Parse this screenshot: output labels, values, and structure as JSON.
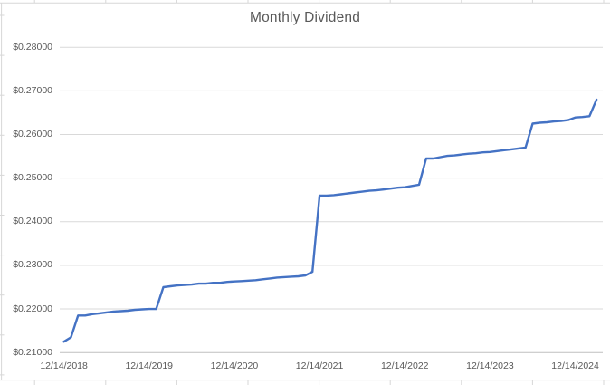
{
  "chart": {
    "colors": {
      "line": "#4472c4",
      "gridline": "#d9d9d9",
      "axis_line": "#bfbfbf",
      "text": "#595959",
      "sheet_grid": "#d7d7d7",
      "background": "#ffffff"
    }
  },
  "chart_data": {
    "type": "line",
    "title": "Monthly Dividend",
    "xlabel": "",
    "ylabel": "",
    "ylim": [
      0.21,
      0.28
    ],
    "y_tick_step": 0.01,
    "y_tick_labels": [
      "$0.21000",
      "$0.22000",
      "$0.23000",
      "$0.24000",
      "$0.25000",
      "$0.26000",
      "$0.27000",
      "$0.28000"
    ],
    "x_tick_labels": [
      "12/14/2018",
      "12/14/2019",
      "12/14/2020",
      "12/14/2021",
      "12/14/2022",
      "12/14/2023",
      "12/14/2024"
    ],
    "x_tick_every_n_points": 12,
    "points_interval": "monthly",
    "grid": true,
    "legend": false,
    "series": [
      {
        "name": "Monthly Dividend",
        "values": [
          0.2125,
          0.2135,
          0.2185,
          0.2185,
          0.2188,
          0.219,
          0.2192,
          0.2194,
          0.2195,
          0.2196,
          0.2198,
          0.2199,
          0.22,
          0.22,
          0.225,
          0.2252,
          0.2254,
          0.2255,
          0.2256,
          0.2258,
          0.2258,
          0.226,
          0.226,
          0.2262,
          0.2263,
          0.2264,
          0.2265,
          0.2266,
          0.2268,
          0.227,
          0.2272,
          0.2273,
          0.2274,
          0.2275,
          0.2277,
          0.2285,
          0.246,
          0.246,
          0.2461,
          0.2463,
          0.2465,
          0.2467,
          0.2469,
          0.2471,
          0.2472,
          0.2474,
          0.2476,
          0.2478,
          0.2479,
          0.2482,
          0.2485,
          0.2545,
          0.2545,
          0.2548,
          0.2551,
          0.2552,
          0.2554,
          0.2556,
          0.2557,
          0.2559,
          0.256,
          0.2562,
          0.2564,
          0.2566,
          0.2568,
          0.257,
          0.2625,
          0.2627,
          0.2628,
          0.263,
          0.2631,
          0.2633,
          0.2639,
          0.264,
          0.2642,
          0.268
        ]
      }
    ]
  }
}
